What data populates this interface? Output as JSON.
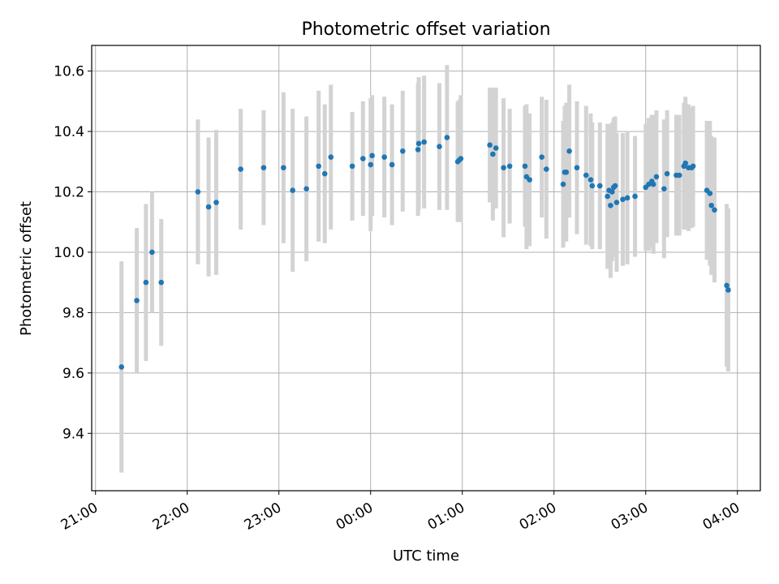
{
  "chart_data": {
    "type": "scatter",
    "title": "Photometric offset variation",
    "xlabel": "UTC time",
    "ylabel": "Photometric offset",
    "xlim": [
      "2024-01-01T20:57:30",
      "2024-01-02T04:15:00"
    ],
    "ylim": [
      9.21,
      10.685
    ],
    "x_ticks": [
      "21:00",
      "22:00",
      "23:00",
      "00:00",
      "01:00",
      "02:00",
      "03:00",
      "04:00"
    ],
    "y_ticks": [
      "9.4",
      "9.6",
      "9.8",
      "10.0",
      "10.2",
      "10.4",
      "10.6"
    ],
    "grid": true,
    "point_color": "#1f77b4",
    "errorbar_color": "#d3d3d3",
    "series": [
      {
        "x": [
          "2024-01-01T21:17:00",
          "2024-01-01T21:27:00",
          "2024-01-01T21:33:00",
          "2024-01-01T21:37:00",
          "2024-01-01T21:43:00",
          "2024-01-01T22:07:00",
          "2024-01-01T22:14:00",
          "2024-01-01T22:19:00",
          "2024-01-01T22:35:00",
          "2024-01-01T22:50:00",
          "2024-01-01T23:03:00",
          "2024-01-01T23:09:00",
          "2024-01-01T23:18:00",
          "2024-01-01T23:26:00",
          "2024-01-01T23:30:00",
          "2024-01-01T23:34:00",
          "2024-01-01T23:48:00",
          "2024-01-01T23:55:00",
          "2024-01-02T00:00:00",
          "2024-01-02T00:01:00",
          "2024-01-02T00:09:00",
          "2024-01-02T00:14:00",
          "2024-01-02T00:21:00",
          "2024-01-02T00:31:00",
          "2024-01-02T00:31:30",
          "2024-01-02T00:35:00",
          "2024-01-02T00:45:00",
          "2024-01-02T00:50:00",
          "2024-01-02T00:57:00",
          "2024-01-02T00:58:00",
          "2024-01-02T00:59:00",
          "2024-01-02T01:18:00",
          "2024-01-02T01:20:00",
          "2024-01-02T01:22:00",
          "2024-01-02T01:27:00",
          "2024-01-02T01:31:00",
          "2024-01-02T01:41:00",
          "2024-01-02T01:42:00",
          "2024-01-02T01:44:00",
          "2024-01-02T01:52:00",
          "2024-01-02T01:55:00",
          "2024-01-02T02:06:00",
          "2024-01-02T02:07:00",
          "2024-01-02T02:08:00",
          "2024-01-02T02:10:00",
          "2024-01-02T02:15:00",
          "2024-01-02T02:21:00",
          "2024-01-02T02:24:00",
          "2024-01-02T02:25:00",
          "2024-01-02T02:30:00",
          "2024-01-02T02:35:00",
          "2024-01-02T02:36:00",
          "2024-01-02T02:37:00",
          "2024-01-02T02:38:00",
          "2024-01-02T02:39:00",
          "2024-01-02T02:40:00",
          "2024-01-02T02:41:00",
          "2024-01-02T02:45:00",
          "2024-01-02T02:48:00",
          "2024-01-02T02:53:00",
          "2024-01-02T03:00:00",
          "2024-01-02T03:02:00",
          "2024-01-02T03:04:00",
          "2024-01-02T03:05:00",
          "2024-01-02T03:07:00",
          "2024-01-02T03:12:00",
          "2024-01-02T03:14:00",
          "2024-01-02T03:20:00",
          "2024-01-02T03:22:00",
          "2024-01-02T03:25:00",
          "2024-01-02T03:26:00",
          "2024-01-02T03:28:00",
          "2024-01-02T03:30:00",
          "2024-01-02T03:31:00",
          "2024-01-02T03:40:00",
          "2024-01-02T03:42:00",
          "2024-01-02T03:43:00",
          "2024-01-02T03:45:00",
          "2024-01-02T03:53:00",
          "2024-01-02T03:54:00"
        ],
        "y": [
          9.62,
          9.84,
          9.9,
          10.0,
          9.9,
          10.2,
          10.15,
          10.165,
          10.275,
          10.28,
          10.28,
          10.205,
          10.21,
          10.285,
          10.26,
          10.315,
          10.285,
          10.31,
          10.29,
          10.32,
          10.315,
          10.29,
          10.335,
          10.34,
          10.36,
          10.365,
          10.35,
          10.38,
          10.3,
          10.305,
          10.31,
          10.355,
          10.325,
          10.345,
          10.28,
          10.285,
          10.285,
          10.25,
          10.24,
          10.315,
          10.275,
          10.225,
          10.265,
          10.265,
          10.335,
          10.28,
          10.255,
          10.24,
          10.22,
          10.22,
          10.185,
          10.205,
          10.155,
          10.2,
          10.215,
          10.22,
          10.165,
          10.175,
          10.18,
          10.185,
          10.215,
          10.225,
          10.235,
          10.225,
          10.25,
          10.21,
          10.26,
          10.255,
          10.255,
          10.285,
          10.295,
          10.28,
          10.28,
          10.285,
          10.205,
          10.195,
          10.155,
          10.14,
          9.89,
          9.875
        ],
        "err": [
          0.35,
          0.24,
          0.26,
          0.2,
          0.21,
          0.24,
          0.23,
          0.24,
          0.2,
          0.19,
          0.25,
          0.27,
          0.24,
          0.25,
          0.23,
          0.24,
          0.18,
          0.19,
          0.22,
          0.2,
          0.2,
          0.2,
          0.2,
          0.22,
          0.22,
          0.22,
          0.21,
          0.24,
          0.2,
          0.2,
          0.21,
          0.19,
          0.22,
          0.2,
          0.23,
          0.19,
          0.2,
          0.24,
          0.22,
          0.2,
          0.23,
          0.21,
          0.22,
          0.23,
          0.22,
          0.22,
          0.23,
          0.22,
          0.21,
          0.21,
          0.24,
          0.22,
          0.24,
          0.23,
          0.23,
          0.23,
          0.23,
          0.22,
          0.22,
          0.2,
          0.21,
          0.22,
          0.22,
          0.23,
          0.22,
          0.23,
          0.21,
          0.2,
          0.2,
          0.21,
          0.22,
          0.21,
          0.2,
          0.2,
          0.23,
          0.24,
          0.23,
          0.24,
          0.27,
          0.27
        ]
      }
    ]
  }
}
